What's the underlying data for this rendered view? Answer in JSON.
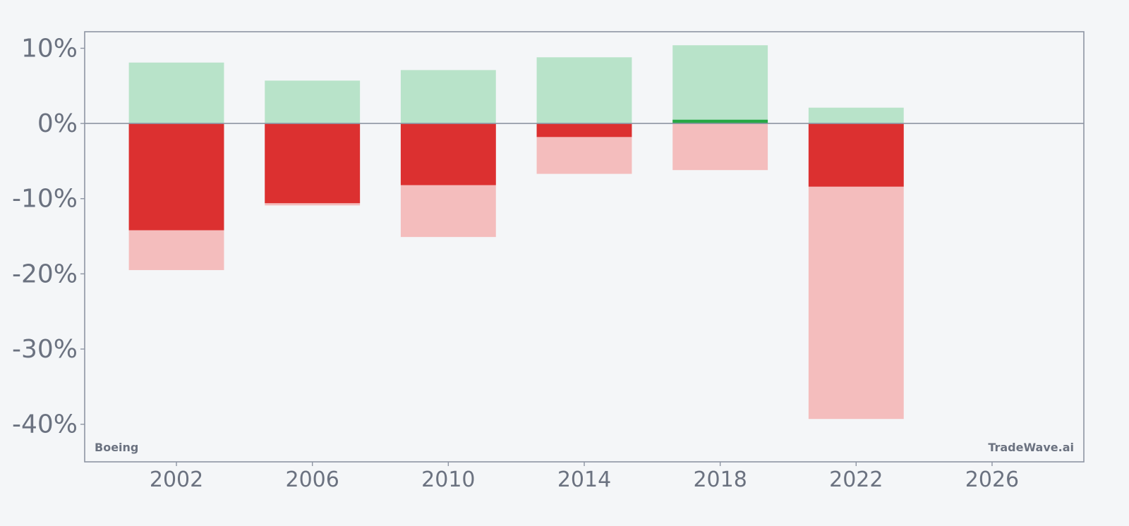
{
  "chart_data": {
    "type": "bar",
    "x": [
      2002,
      2006,
      2010,
      2014,
      2018,
      2022
    ],
    "series": [
      {
        "values": [
          -14.2,
          -10.6,
          -8.2,
          -1.8,
          0.5,
          -8.4
        ]
      },
      {
        "values": [
          8.1,
          5.7,
          7.1,
          8.8,
          10.4,
          2.1
        ]
      },
      {
        "values": [
          -19.5,
          -10.9,
          -15.1,
          -6.7,
          -6.2,
          -39.3
        ]
      }
    ],
    "xlim": [
      1999.3,
      2028.7
    ],
    "ylim": [
      -45,
      12.2
    ],
    "x_ticks": [
      2002,
      2006,
      2010,
      2014,
      2018,
      2022,
      2026
    ],
    "x_tick_labels": [
      "2002",
      "2006",
      "2010",
      "2014",
      "2018",
      "2022",
      "2026"
    ],
    "y_ticks": [
      10,
      0,
      -10,
      -20,
      -30,
      -40
    ],
    "y_tick_labels": [
      "10%",
      "0%",
      "-10%",
      "-20%",
      "-30%",
      "-40%"
    ],
    "grid": false,
    "colors": {
      "return_negative": "#dc3030",
      "return_positive": "#28a745",
      "range_high": "#b8e3c9",
      "range_low": "#f4bdbd",
      "axis": "#8e95a3",
      "text": "#6b7280",
      "background": "#f4f6f8"
    }
  },
  "watermarks": {
    "left": "Boeing",
    "right": "TradeWave.ai"
  }
}
